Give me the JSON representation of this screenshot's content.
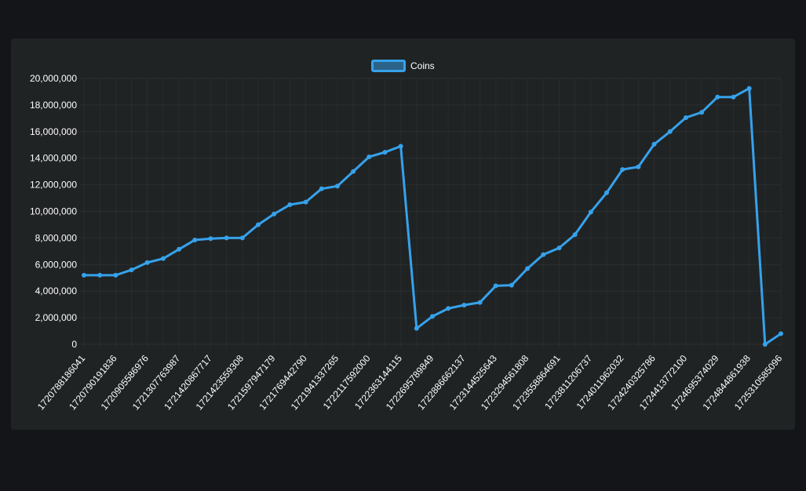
{
  "chart_data": {
    "type": "line",
    "title": "",
    "xlabel": "",
    "ylabel": "",
    "legend": {
      "position": "top-center"
    },
    "grid": true,
    "ylim": [
      0,
      20000000
    ],
    "y_ticks": [
      0,
      2000000,
      4000000,
      6000000,
      8000000,
      10000000,
      12000000,
      14000000,
      16000000,
      18000000,
      20000000
    ],
    "y_tick_labels": [
      "0",
      "2,000,000",
      "4,000,000",
      "6,000,000",
      "8,000,000",
      "10,000,000",
      "12,000,000",
      "14,000,000",
      "16,000,000",
      "18,000,000",
      "20,000,000"
    ],
    "x_tick_labels": [
      "1720788186041",
      "1720790191836",
      "1720905586976",
      "1721307763987",
      "1721420867717",
      "1721423559308",
      "1721597947179",
      "1721769442790",
      "1721941337265",
      "1722117592000",
      "1722363144115",
      "1722695789849",
      "1722886662137",
      "1723144525643",
      "1723294561808",
      "1723558864691",
      "1723811206737",
      "1724011962032",
      "1724240325786",
      "1724413772100",
      "1724695374029",
      "1724844861938",
      "1725310585096"
    ],
    "series": [
      {
        "name": "Coins",
        "color": "#36a2eb",
        "values": [
          5200000,
          5200000,
          5200000,
          5600000,
          6150000,
          6450000,
          7150000,
          7850000,
          7950000,
          8000000,
          8000000,
          9000000,
          9800000,
          10500000,
          10700000,
          11700000,
          11900000,
          13000000,
          14100000,
          14450000,
          14900000,
          1200000,
          2100000,
          2700000,
          2950000,
          3150000,
          4400000,
          4450000,
          5700000,
          6750000,
          7250000,
          8250000,
          9950000,
          11400000,
          13150000,
          13350000,
          15050000,
          16000000,
          17050000,
          17450000,
          18600000,
          18600000,
          19250000,
          0,
          800000
        ]
      }
    ]
  }
}
